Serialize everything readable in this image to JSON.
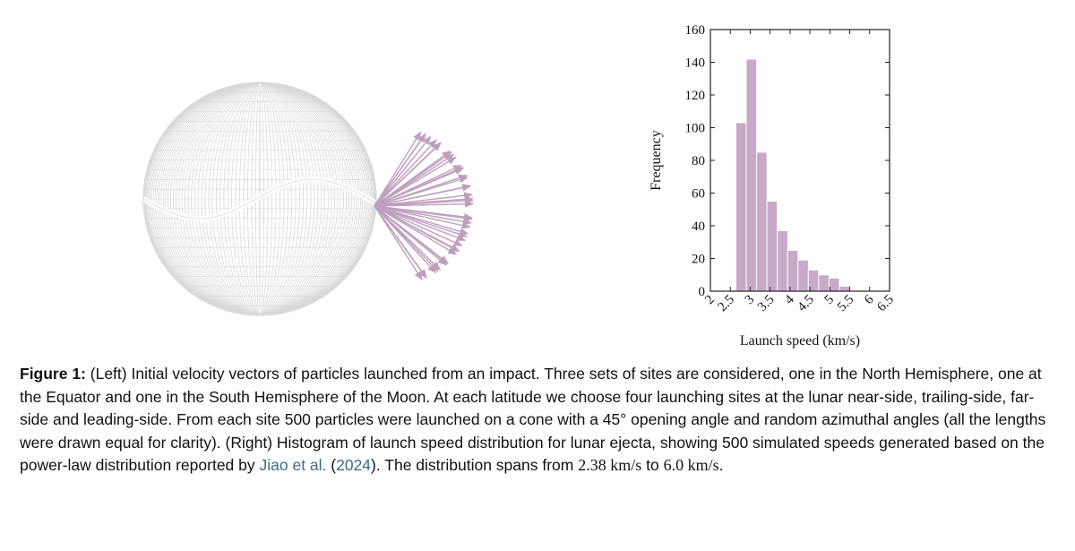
{
  "figure": {
    "colors": {
      "sphere_mesh": "#d9d9d9",
      "vectors": "#bf9fbf",
      "bars": "#c9a9c9",
      "bar_edge": "#ffffff"
    },
    "left_panel": {
      "icon": "moon-sphere-with-velocity-vectors-icon"
    }
  },
  "chart_data": {
    "type": "bar",
    "title": "",
    "xlabel": "Launch speed (km/s)",
    "ylabel": "Frequency",
    "bin_edges": [
      2.38,
      2.64,
      2.9,
      3.16,
      3.42,
      3.68,
      3.94,
      4.2,
      4.46,
      4.72,
      4.98,
      5.24,
      5.5,
      5.76,
      6.02,
      6.28,
      6.54
    ],
    "values": [
      0,
      103,
      142,
      85,
      55,
      37,
      25,
      19,
      13,
      10,
      8,
      3,
      0,
      0,
      0,
      0
    ],
    "xticks": [
      "2",
      "2.5",
      "3",
      "3.5",
      "4",
      "4.5",
      "5",
      "5.5",
      "6",
      "6.5"
    ],
    "xtick_values": [
      2,
      2.5,
      3,
      3.5,
      4,
      4.5,
      5,
      5.5,
      6,
      6.5
    ],
    "yticks": [
      "0",
      "20",
      "40",
      "60",
      "80",
      "100",
      "120",
      "140",
      "160"
    ],
    "xlim": [
      2,
      6.5
    ],
    "ylim": [
      0,
      160
    ],
    "grid": false,
    "legend": "none"
  },
  "caption": {
    "label": "Figure 1:",
    "part1": " (Left) Initial velocity vectors of particles launched from an impact. Three sets of sites are considered, one in the North Hemisphere, one at the Equator and one in the South Hemisphere of the Moon. At each latitude we choose four launching sites at the lunar near-side, trailing-side, far-side and leading-side. From each site 500 particles were launched on a cone with a 45° opening angle and random azimuthal angles (all the lengths were drawn equal for clarity). (Right) Histogram of launch speed distribution for lunar ejecta, showing 500 simulated speeds generated based on the power-law distribution reported by ",
    "cite_authors": "Jiao et al.",
    "cite_open": " (",
    "cite_year": "2024",
    "cite_close": "). The distribution spans from ",
    "speed_min": "2.38 km/s",
    "mid": " to ",
    "speed_max": "6.0 km/s",
    "end": "."
  }
}
